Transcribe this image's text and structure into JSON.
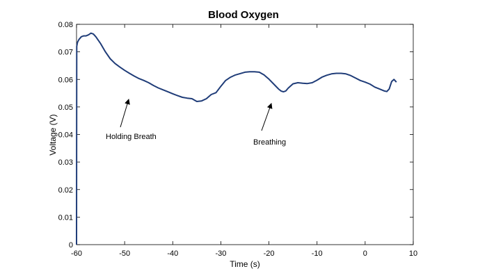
{
  "chart_data": {
    "type": "line",
    "title": "Blood Oxygen",
    "xlabel": "Time (s)",
    "ylabel": "Voltage (V)",
    "xlim": [
      -60,
      10
    ],
    "ylim": [
      0,
      0.08
    ],
    "x_ticks": [
      -60,
      -50,
      -40,
      -30,
      -20,
      -10,
      0,
      10
    ],
    "y_ticks": [
      0,
      0.01,
      0.02,
      0.03,
      0.04,
      0.05,
      0.06,
      0.07,
      0.08
    ],
    "x_tick_labels": [
      "-60",
      "-50",
      "-40",
      "-30",
      "-20",
      "-10",
      "0",
      "10"
    ],
    "y_tick_labels": [
      "0",
      "0.01",
      "0.02",
      "0.03",
      "0.04",
      "0.05",
      "0.06",
      "0.07",
      "0.08"
    ],
    "grid": false,
    "line_color": "#1f3c78",
    "series": [
      {
        "x": [
          -60,
          -59.95,
          -59.8,
          -59.5,
          -59,
          -58.5,
          -58,
          -57.5,
          -57,
          -56.5,
          -56,
          -55,
          -54,
          -53,
          -52,
          -51,
          -50,
          -49,
          -48,
          -47,
          -46,
          -45,
          -44,
          -43,
          -42,
          -41,
          -40,
          -39,
          -38,
          -37,
          -36,
          -35,
          -34,
          -33,
          -32,
          -31,
          -30,
          -29,
          -28,
          -27,
          -26,
          -25,
          -24,
          -23,
          -22,
          -21,
          -20,
          -19,
          -18,
          -17.5,
          -17,
          -16.5,
          -16,
          -15,
          -14,
          -13,
          -12,
          -11,
          -10,
          -9,
          -8,
          -7,
          -6,
          -5,
          -4,
          -3,
          -2,
          -1,
          0,
          1,
          2,
          3,
          4,
          4.5,
          5,
          5.5,
          6,
          6.5
        ],
        "y": [
          0.0,
          0.072,
          0.0735,
          0.0745,
          0.0755,
          0.0758,
          0.0758,
          0.0762,
          0.0768,
          0.0765,
          0.0755,
          0.073,
          0.07,
          0.0675,
          0.0658,
          0.0645,
          0.0633,
          0.0622,
          0.0612,
          0.0603,
          0.0596,
          0.0588,
          0.0578,
          0.0569,
          0.0562,
          0.0555,
          0.0548,
          0.0541,
          0.0535,
          0.0532,
          0.053,
          0.052,
          0.0522,
          0.053,
          0.0545,
          0.0552,
          0.0575,
          0.0596,
          0.0608,
          0.0616,
          0.0621,
          0.0626,
          0.0628,
          0.0628,
          0.0626,
          0.0616,
          0.0601,
          0.0583,
          0.0565,
          0.0558,
          0.0555,
          0.0558,
          0.0568,
          0.0584,
          0.0588,
          0.0586,
          0.0585,
          0.0588,
          0.0597,
          0.0608,
          0.0615,
          0.062,
          0.0622,
          0.0622,
          0.062,
          0.0614,
          0.0605,
          0.0596,
          0.059,
          0.0583,
          0.0572,
          0.0565,
          0.0558,
          0.0556,
          0.0565,
          0.0592,
          0.06,
          0.059
        ]
      }
    ],
    "annotations": [
      {
        "text": "Holding Breath",
        "arrow_to": [
          -49.5,
          0.0535
        ]
      },
      {
        "text": "Breathing",
        "arrow_to": [
          -19,
          0.0515
        ]
      }
    ]
  }
}
